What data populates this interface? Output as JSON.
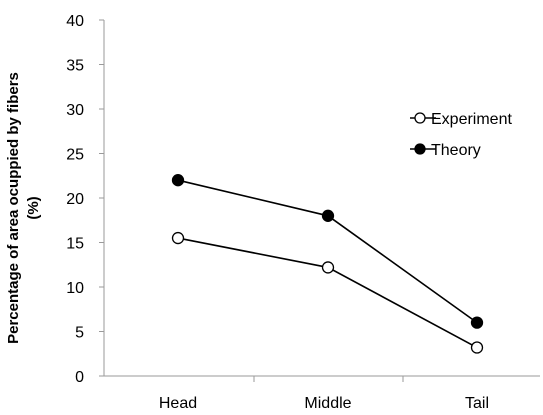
{
  "chart_data": {
    "type": "line",
    "categories": [
      "Head",
      "Middle",
      "Tail"
    ],
    "series": [
      {
        "name": "Experiment",
        "values": [
          15.5,
          12.2,
          3.2
        ],
        "marker": "open-circle",
        "color": "#000000"
      },
      {
        "name": "Theory",
        "values": [
          22,
          18,
          6
        ],
        "marker": "filled-circle",
        "color": "#000000"
      }
    ],
    "title": "",
    "xlabel": "",
    "ylabel_line1": "Percentage of area ocuppied by fibers",
    "ylabel_line2": "(%)",
    "ylim": [
      0,
      40
    ],
    "yticks": [
      "0",
      "5",
      "10",
      "15",
      "20",
      "25",
      "30",
      "35",
      "40"
    ],
    "grid": false,
    "legend_position": "right"
  }
}
